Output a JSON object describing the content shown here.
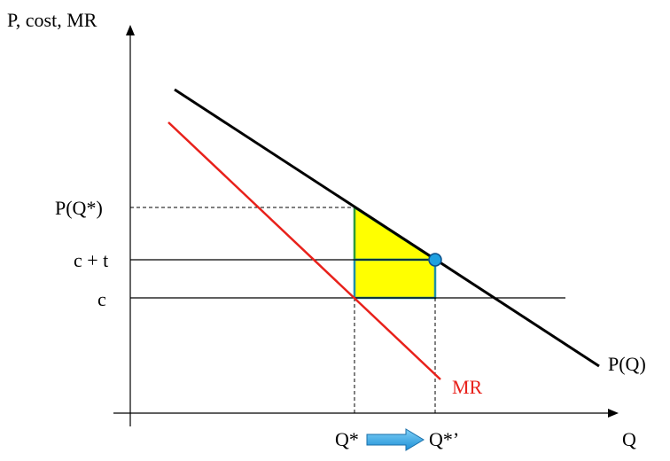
{
  "axes": {
    "y_label": "P, cost, MR",
    "x_label": "Q"
  },
  "y_ticks": {
    "p_qstar": "P(Q*)",
    "c_plus_t": "c + t",
    "c": "c"
  },
  "x_ticks": {
    "q_star": "Q*",
    "q_star_prime": "Q*’"
  },
  "curves": {
    "demand_label": "P(Q)",
    "mr_label": "MR"
  },
  "colors": {
    "demand": "#000000",
    "mr": "#e8211b",
    "triangle_fill": "#ffff00",
    "triangle_stroke": "#2e9b3b",
    "rect_stroke": "#1f8fa8",
    "point_fill": "#1ea0e0",
    "arrow_fill": "#2fa6e6"
  },
  "icons": {
    "arrow": "right-arrow-icon",
    "point": "equilibrium-point-icon"
  }
}
